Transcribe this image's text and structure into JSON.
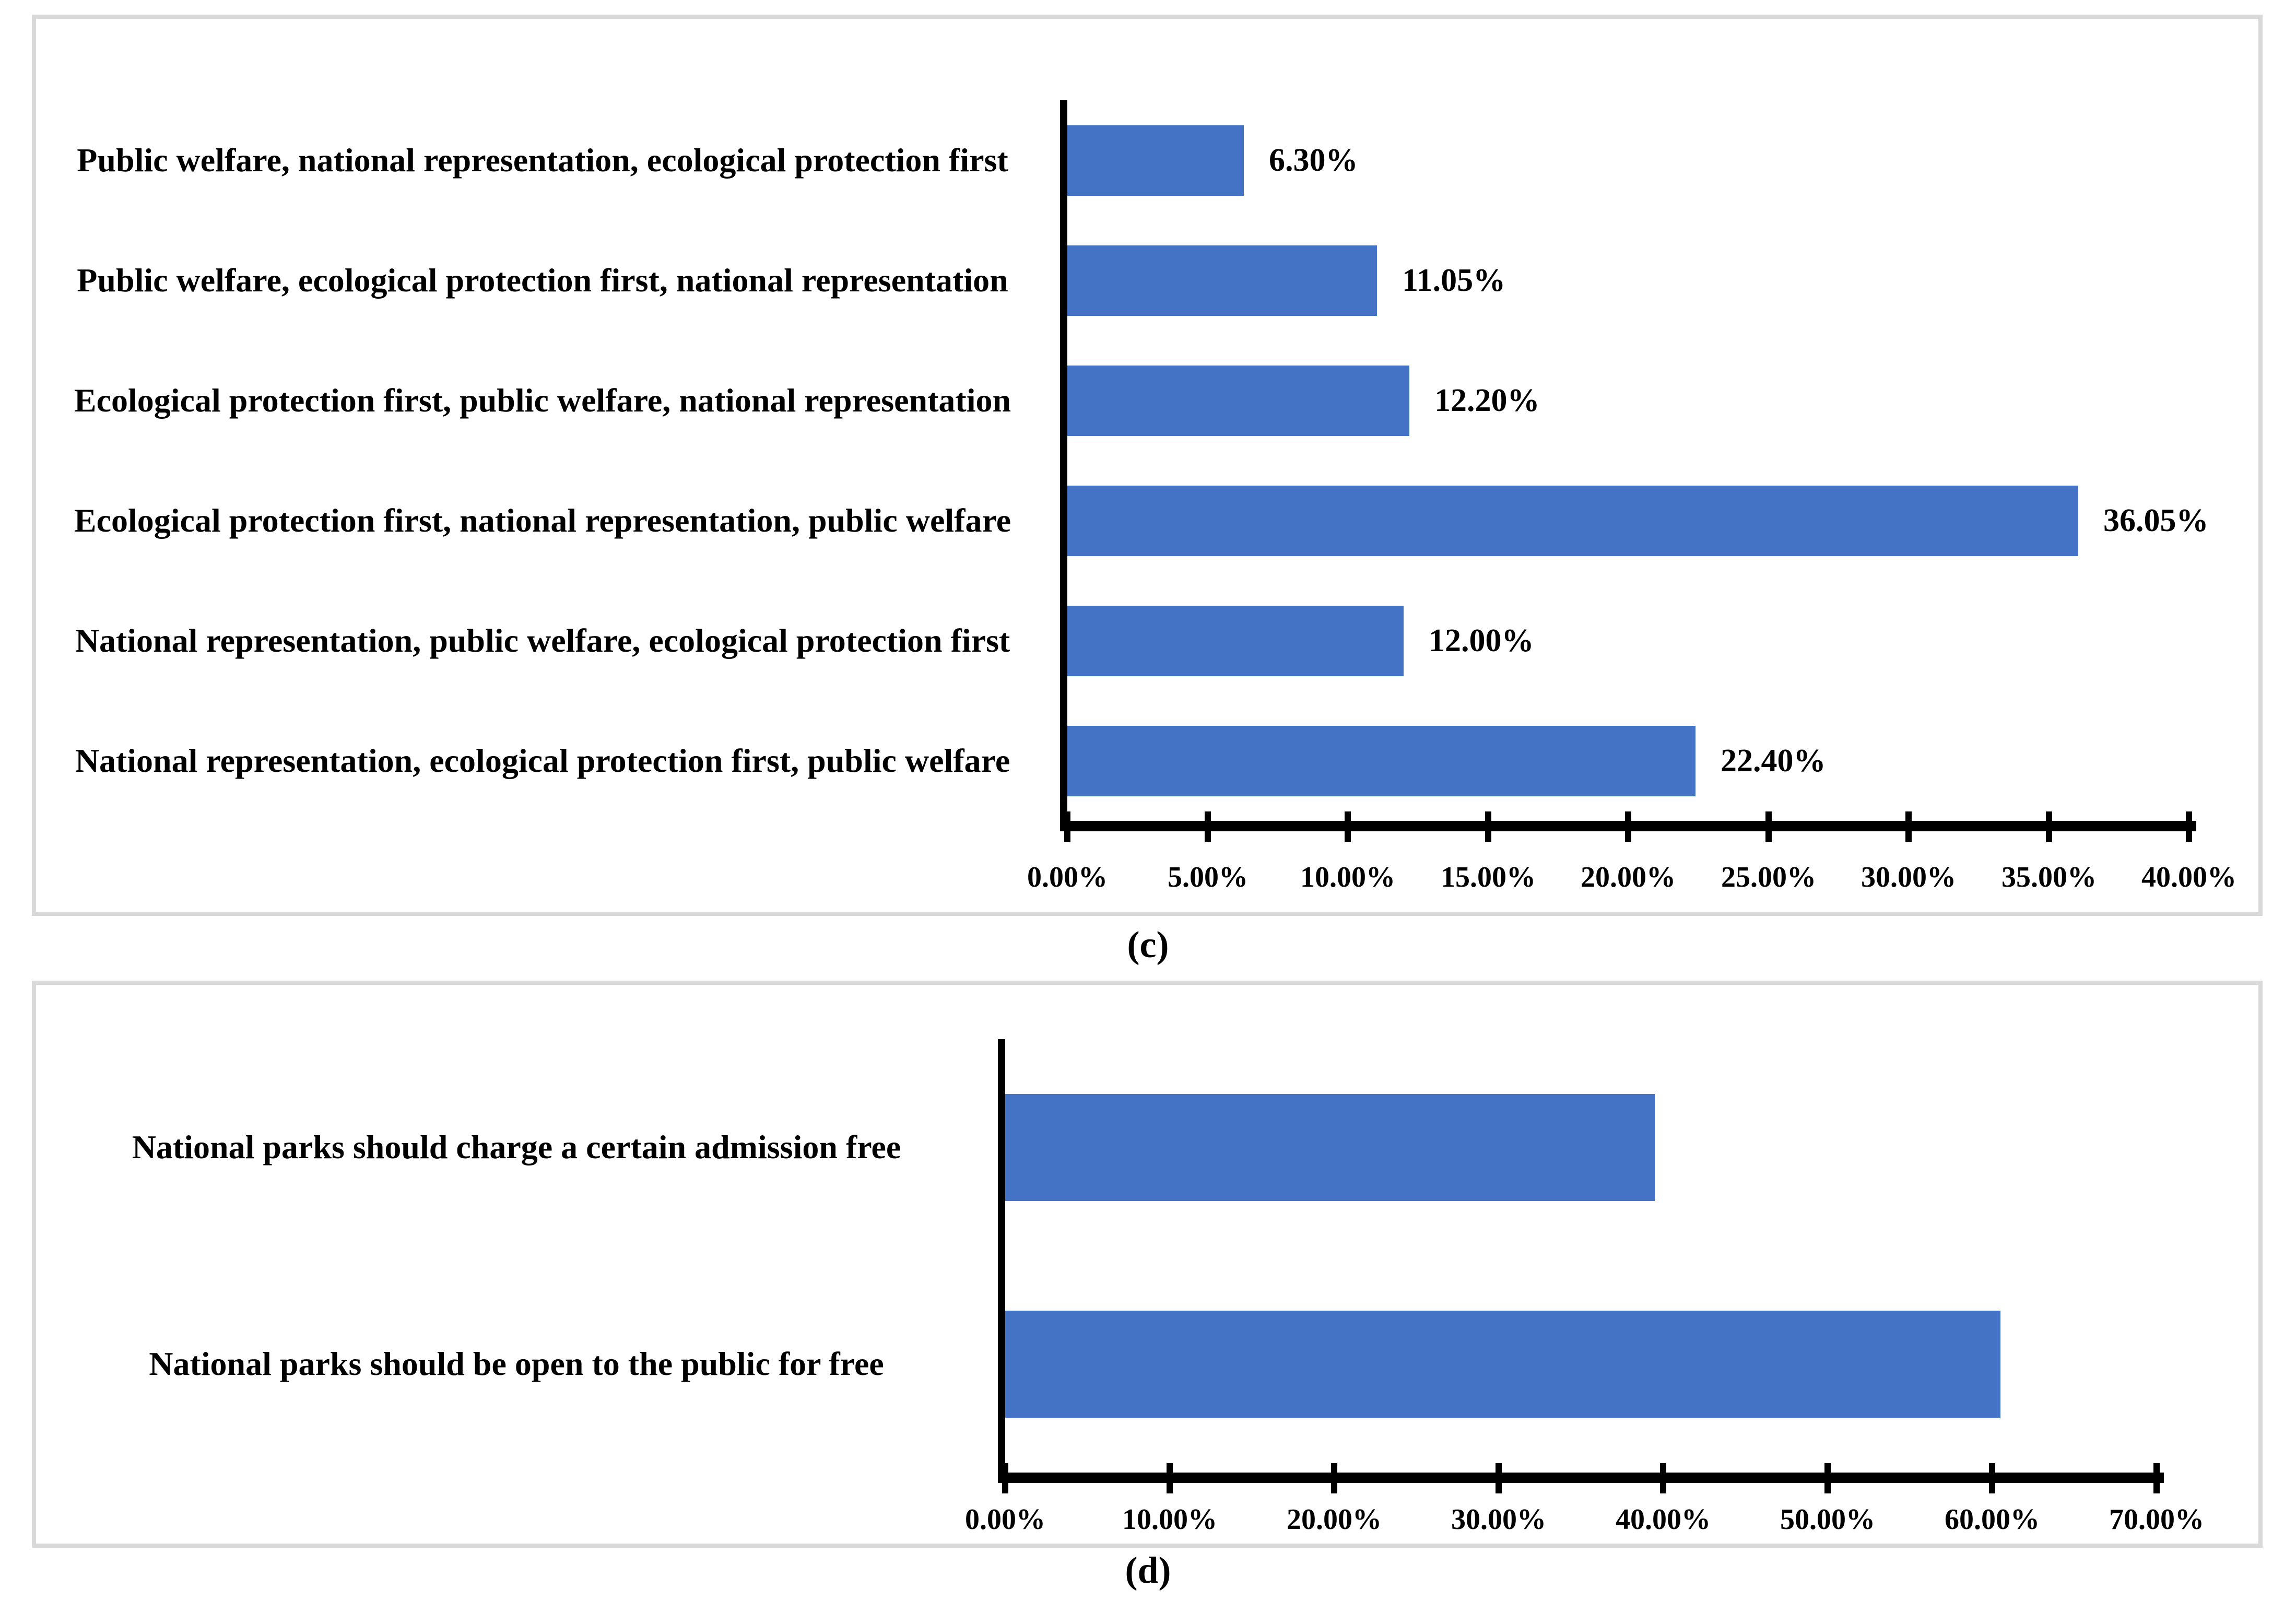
{
  "figure": {
    "caption_c": "(c)",
    "caption_d": "(d)"
  },
  "colors": {
    "bar": "#4472C4",
    "panel_border": "#D9D9D9",
    "axis": "#000000",
    "background": "#FFFFFF",
    "text": "#000000"
  },
  "chart_data": [
    {
      "type": "bar",
      "orientation": "horizontal",
      "caption": "(c)",
      "title": "",
      "xlabel": "",
      "ylabel": "",
      "categories": [
        "Public welfare, national representation, ecological protection first",
        "Public welfare, ecological protection first, national representation",
        "Ecological protection first, public welfare, national representation",
        "Ecological protection first, national representation, public welfare",
        "National representation, public welfare, ecological protection first",
        "National representation, ecological protection first, public welfare"
      ],
      "values": [
        6.3,
        11.05,
        12.2,
        36.05,
        12.0,
        22.4
      ],
      "data_labels": [
        "6.30%",
        "11.05%",
        "12.20%",
        "36.05%",
        "12.00%",
        "22.40%"
      ],
      "xlim": [
        0,
        40
      ],
      "tick_step": 5,
      "tick_labels": [
        "0.00%",
        "5.00%",
        "10.00%",
        "15.00%",
        "20.00%",
        "25.00%",
        "30.00%",
        "35.00%",
        "40.00%"
      ],
      "grid": false,
      "legend": "none",
      "bar_color": "#4472C4"
    },
    {
      "type": "bar",
      "orientation": "horizontal",
      "caption": "(d)",
      "title": "",
      "xlabel": "",
      "ylabel": "",
      "categories": [
        "National parks should charge a certain admission free",
        "National parks should be open to the public for free"
      ],
      "values": [
        39.5,
        60.5
      ],
      "data_labels": [
        "",
        ""
      ],
      "xlim": [
        0,
        70
      ],
      "tick_step": 10,
      "tick_labels": [
        "0.00%",
        "10.00%",
        "20.00%",
        "30.00%",
        "40.00%",
        "50.00%",
        "60.00%",
        "70.00%"
      ],
      "grid": false,
      "legend": "none",
      "bar_color": "#4472C4"
    }
  ]
}
